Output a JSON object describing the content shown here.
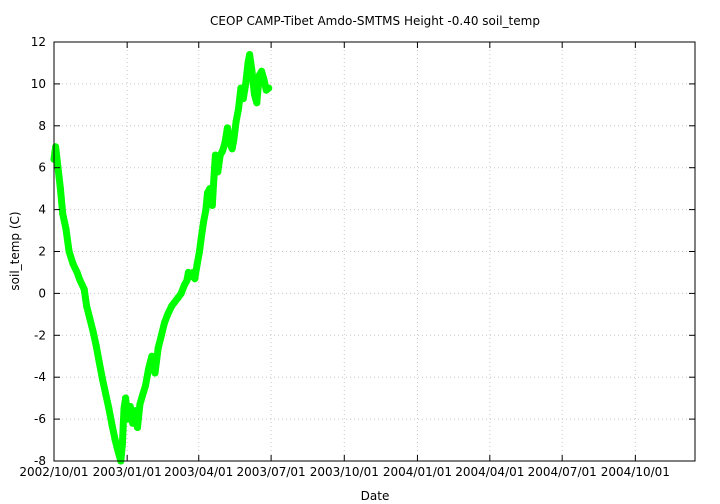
{
  "chart_data": {
    "type": "line",
    "title": "CEOP CAMP-Tibet Amdo-SMTMS Height -0.40 soil_temp",
    "xlabel": "Date",
    "ylabel": "soil_temp (C)",
    "x_type": "date",
    "xlim": [
      "2002-10-01",
      "2004-12-15"
    ],
    "ylim": [
      -8,
      12
    ],
    "y_ticks": [
      -8,
      -6,
      -4,
      -2,
      0,
      2,
      4,
      6,
      8,
      10,
      12
    ],
    "x_ticks": [
      {
        "date": "2002-10-01",
        "label": "2002/10/01"
      },
      {
        "date": "2003-01-01",
        "label": "2003/01/01"
      },
      {
        "date": "2003-04-01",
        "label": "2003/04/01"
      },
      {
        "date": "2003-07-01",
        "label": "2003/07/01"
      },
      {
        "date": "2003-10-01",
        "label": "2003/10/01"
      },
      {
        "date": "2004-01-01",
        "label": "2004/01/01"
      },
      {
        "date": "2004-04-01",
        "label": "2004/04/01"
      },
      {
        "date": "2004-07-01",
        "label": "2004/07/01"
      },
      {
        "date": "2004-10-01",
        "label": "2004/10/01"
      }
    ],
    "grid": true,
    "series": [
      {
        "color": "#00ff00",
        "line_width": 7,
        "points": [
          [
            "2002-10-01",
            6.4
          ],
          [
            "2002-10-03",
            7.0
          ],
          [
            "2002-10-06",
            6.0
          ],
          [
            "2002-10-09",
            5.0
          ],
          [
            "2002-10-12",
            3.8
          ],
          [
            "2002-10-16",
            3.1
          ],
          [
            "2002-10-20",
            2.0
          ],
          [
            "2002-10-25",
            1.4
          ],
          [
            "2002-10-30",
            1.0
          ],
          [
            "2002-11-03",
            0.6
          ],
          [
            "2002-11-08",
            0.2
          ],
          [
            "2002-11-11",
            -0.6
          ],
          [
            "2002-11-15",
            -1.2
          ],
          [
            "2002-11-19",
            -1.8
          ],
          [
            "2002-11-23",
            -2.5
          ],
          [
            "2002-11-27",
            -3.3
          ],
          [
            "2002-12-01",
            -4.1
          ],
          [
            "2002-12-05",
            -4.8
          ],
          [
            "2002-12-09",
            -5.5
          ],
          [
            "2002-12-13",
            -6.3
          ],
          [
            "2002-12-17",
            -7.0
          ],
          [
            "2002-12-21",
            -7.6
          ],
          [
            "2002-12-24",
            -8.0
          ],
          [
            "2002-12-26",
            -7.2
          ],
          [
            "2002-12-28",
            -5.5
          ],
          [
            "2002-12-30",
            -5.0
          ],
          [
            "2003-01-02",
            -6.0
          ],
          [
            "2003-01-05",
            -5.4
          ],
          [
            "2003-01-08",
            -6.2
          ],
          [
            "2003-01-11",
            -5.6
          ],
          [
            "2003-01-14",
            -6.4
          ],
          [
            "2003-01-17",
            -5.3
          ],
          [
            "2003-01-20",
            -4.9
          ],
          [
            "2003-01-24",
            -4.4
          ],
          [
            "2003-01-28",
            -3.6
          ],
          [
            "2003-02-01",
            -3.0
          ],
          [
            "2003-02-05",
            -3.8
          ],
          [
            "2003-02-09",
            -2.6
          ],
          [
            "2003-02-13",
            -2.0
          ],
          [
            "2003-02-17",
            -1.4
          ],
          [
            "2003-02-21",
            -1.0
          ],
          [
            "2003-02-26",
            -0.6
          ],
          [
            "2003-03-02",
            -0.4
          ],
          [
            "2003-03-06",
            -0.2
          ],
          [
            "2003-03-10",
            0.0
          ],
          [
            "2003-03-14",
            0.4
          ],
          [
            "2003-03-17",
            0.6
          ],
          [
            "2003-03-19",
            1.0
          ],
          [
            "2003-03-22",
            0.8
          ],
          [
            "2003-03-25",
            1.0
          ],
          [
            "2003-03-27",
            0.7
          ],
          [
            "2003-03-30",
            1.4
          ],
          [
            "2003-04-02",
            2.0
          ],
          [
            "2003-04-04",
            2.6
          ],
          [
            "2003-04-07",
            3.4
          ],
          [
            "2003-04-10",
            4.0
          ],
          [
            "2003-04-12",
            4.8
          ],
          [
            "2003-04-15",
            5.0
          ],
          [
            "2003-04-18",
            4.2
          ],
          [
            "2003-04-20",
            5.5
          ],
          [
            "2003-04-22",
            6.6
          ],
          [
            "2003-04-25",
            5.8
          ],
          [
            "2003-04-28",
            6.6
          ],
          [
            "2003-05-01",
            6.8
          ],
          [
            "2003-05-04",
            7.2
          ],
          [
            "2003-05-07",
            7.9
          ],
          [
            "2003-05-10",
            7.2
          ],
          [
            "2003-05-13",
            6.9
          ],
          [
            "2003-05-15",
            7.3
          ],
          [
            "2003-05-18",
            8.2
          ],
          [
            "2003-05-21",
            8.8
          ],
          [
            "2003-05-24",
            9.8
          ],
          [
            "2003-05-27",
            9.3
          ],
          [
            "2003-05-30",
            10.0
          ],
          [
            "2003-06-02",
            11.0
          ],
          [
            "2003-06-04",
            11.4
          ],
          [
            "2003-06-07",
            10.6
          ],
          [
            "2003-06-10",
            9.5
          ],
          [
            "2003-06-13",
            9.1
          ],
          [
            "2003-06-16",
            10.4
          ],
          [
            "2003-06-19",
            10.6
          ],
          [
            "2003-06-22",
            10.2
          ],
          [
            "2003-06-25",
            9.7
          ],
          [
            "2003-06-28",
            9.8
          ]
        ]
      }
    ]
  }
}
